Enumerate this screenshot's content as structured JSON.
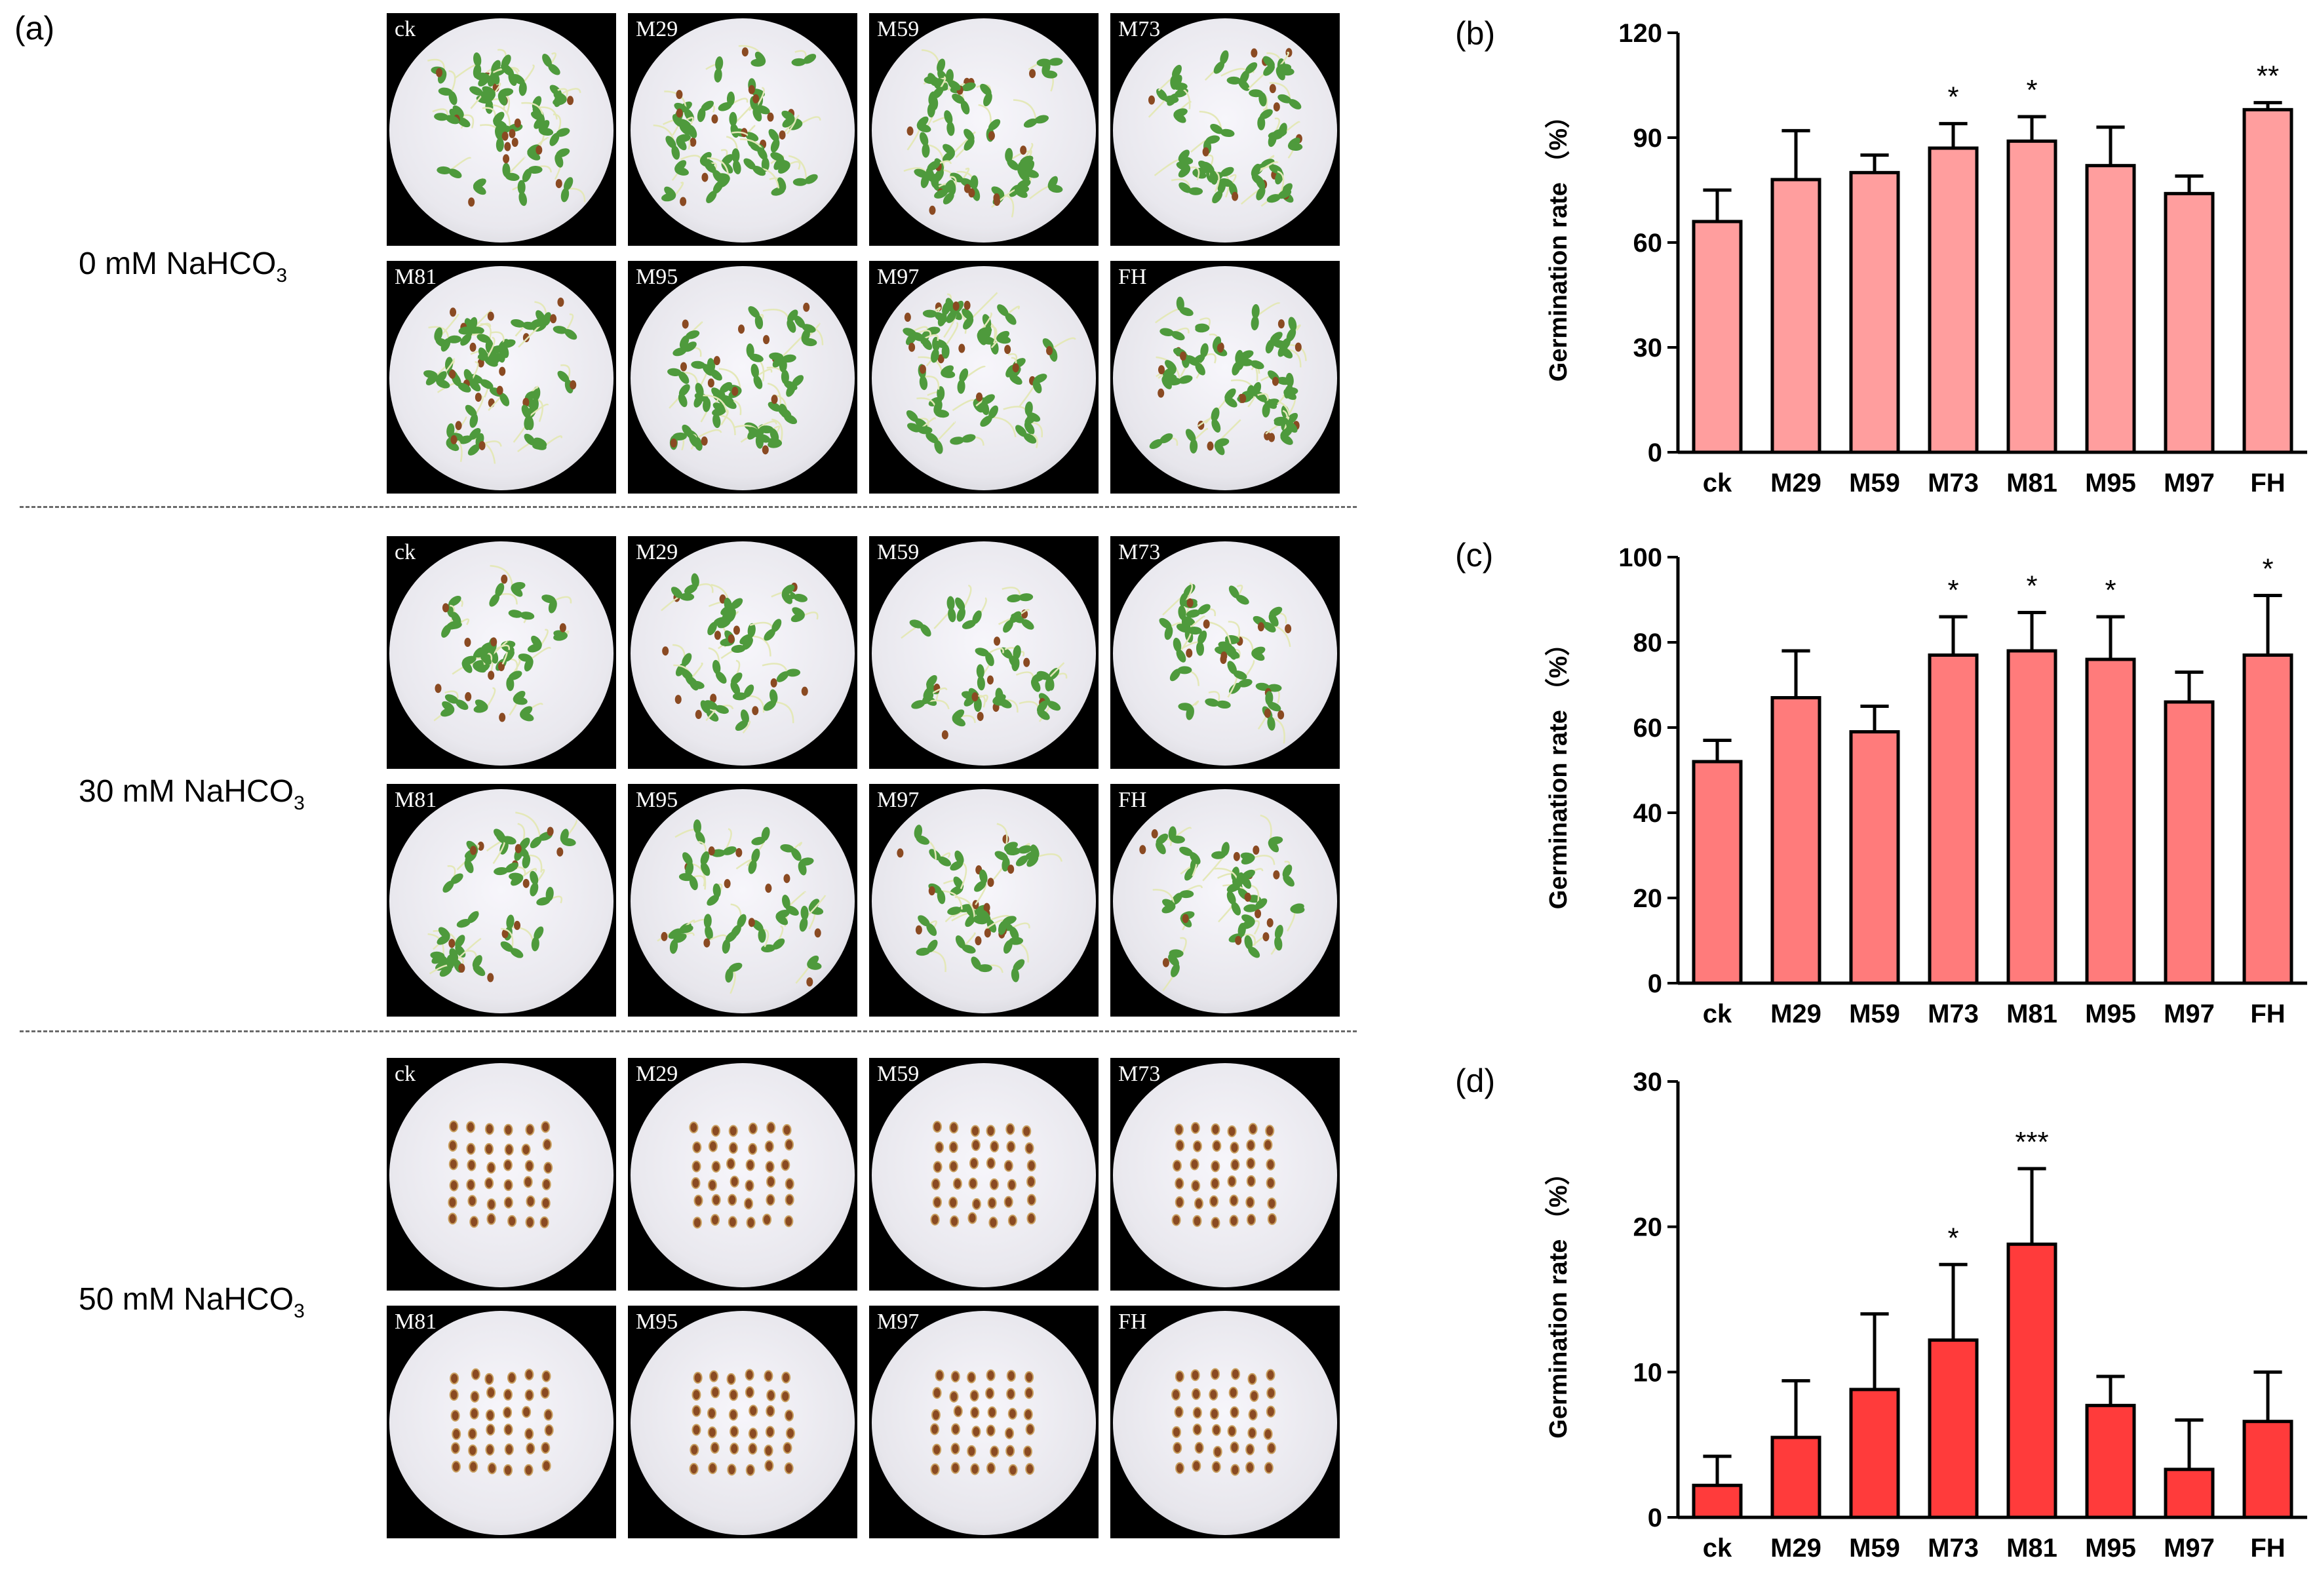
{
  "panel_labels": {
    "a": "(a)",
    "b": "(b)",
    "c": "(c)",
    "d": "(d)"
  },
  "photo_panel": {
    "rows": [
      {
        "label_main": "0 mM NaHCO",
        "label_sub": "3",
        "style": "seedlings"
      },
      {
        "label_main": "30 mM NaHCO",
        "label_sub": "3",
        "style": "seedlings"
      },
      {
        "label_main": "50 mM NaHCO",
        "label_sub": "3",
        "style": "seeds"
      }
    ],
    "dish_labels": [
      "ck",
      "M29",
      "M59",
      "M73",
      "M81",
      "M95",
      "M97",
      "FH"
    ]
  },
  "colors": {
    "b_fill": "#ff9e9e",
    "c_fill": "#ff7b7b",
    "d_fill": "#ff3b3b",
    "stroke": "#000000",
    "leaf": "#4e9a3c",
    "seed": "#8a4a22"
  },
  "chart_data": [
    {
      "type": "bar",
      "panel": "b",
      "ylabel": "Germination rate （%）",
      "categories": [
        "ck",
        "M29",
        "M59",
        "M73",
        "M81",
        "M95",
        "M97",
        "FH"
      ],
      "values": [
        66,
        78,
        80,
        87,
        89,
        82,
        74,
        98
      ],
      "errors": [
        9,
        14,
        5,
        7,
        7,
        11,
        5,
        2
      ],
      "significance": [
        "",
        "",
        "",
        "*",
        "*",
        "",
        "",
        "**"
      ],
      "ylim": [
        0,
        120
      ],
      "yticks": [
        0,
        30,
        60,
        90,
        120
      ],
      "grid": false
    },
    {
      "type": "bar",
      "panel": "c",
      "ylabel": "Germination rate （%）",
      "categories": [
        "ck",
        "M29",
        "M59",
        "M73",
        "M81",
        "M95",
        "M97",
        "FH"
      ],
      "values": [
        52,
        67,
        59,
        77,
        78,
        76,
        66,
        77
      ],
      "errors": [
        5,
        11,
        6,
        9,
        9,
        10,
        7,
        14
      ],
      "significance": [
        "",
        "",
        "",
        "*",
        "*",
        "*",
        "",
        "*"
      ],
      "ylim": [
        0,
        100
      ],
      "yticks": [
        0,
        20,
        40,
        60,
        80,
        100
      ],
      "grid": false
    },
    {
      "type": "bar",
      "panel": "d",
      "ylabel": "Germination rate （%）",
      "categories": [
        "ck",
        "M29",
        "M59",
        "M73",
        "M81",
        "M95",
        "M97",
        "FH"
      ],
      "values": [
        2.2,
        5.5,
        8.8,
        12.2,
        18.8,
        7.7,
        3.3,
        6.6
      ],
      "errors": [
        2.0,
        3.9,
        5.2,
        5.2,
        5.2,
        2.0,
        3.4,
        3.4
      ],
      "significance": [
        "",
        "",
        "",
        "*",
        "***",
        "",
        "",
        ""
      ],
      "ylim": [
        0,
        30
      ],
      "yticks": [
        0,
        10,
        20,
        30
      ],
      "grid": false
    }
  ]
}
